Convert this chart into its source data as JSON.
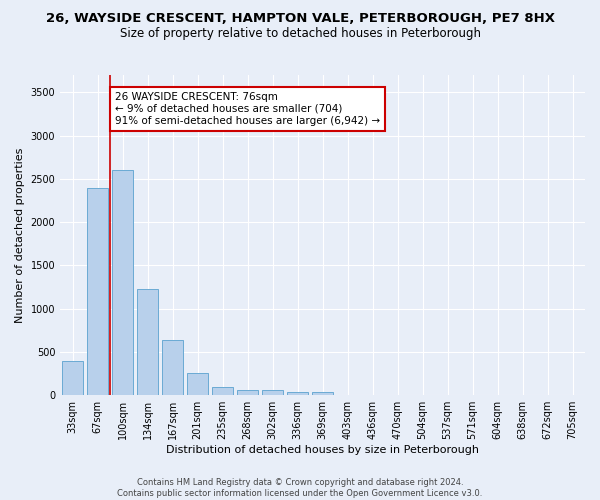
{
  "title_line1": "26, WAYSIDE CRESCENT, HAMPTON VALE, PETERBOROUGH, PE7 8HX",
  "title_line2": "Size of property relative to detached houses in Peterborough",
  "xlabel": "Distribution of detached houses by size in Peterborough",
  "ylabel": "Number of detached properties",
  "footnote": "Contains HM Land Registry data © Crown copyright and database right 2024.\nContains public sector information licensed under the Open Government Licence v3.0.",
  "bar_labels": [
    "33sqm",
    "67sqm",
    "100sqm",
    "134sqm",
    "167sqm",
    "201sqm",
    "235sqm",
    "268sqm",
    "302sqm",
    "336sqm",
    "369sqm",
    "403sqm",
    "436sqm",
    "470sqm",
    "504sqm",
    "537sqm",
    "571sqm",
    "604sqm",
    "638sqm",
    "672sqm",
    "705sqm"
  ],
  "bar_heights": [
    390,
    2400,
    2600,
    1230,
    640,
    255,
    95,
    60,
    55,
    40,
    35,
    0,
    0,
    0,
    0,
    0,
    0,
    0,
    0,
    0,
    0
  ],
  "bar_color": "#b8d0eb",
  "bar_edge_color": "#6aaad4",
  "property_line_x": 1.5,
  "annotation_text": "26 WAYSIDE CRESCENT: 76sqm\n← 9% of detached houses are smaller (704)\n91% of semi-detached houses are larger (6,942) →",
  "annotation_box_color": "white",
  "annotation_box_edge_color": "#cc0000",
  "vline_color": "#cc0000",
  "ylim": [
    0,
    3700
  ],
  "yticks": [
    0,
    500,
    1000,
    1500,
    2000,
    2500,
    3000,
    3500
  ],
  "background_color": "#e8eef8",
  "grid_color": "white",
  "title_fontsize": 9.5,
  "subtitle_fontsize": 8.5,
  "axis_label_fontsize": 8,
  "tick_fontsize": 7,
  "annotation_fontsize": 7.5,
  "footnote_fontsize": 6,
  "bar_width": 0.85
}
